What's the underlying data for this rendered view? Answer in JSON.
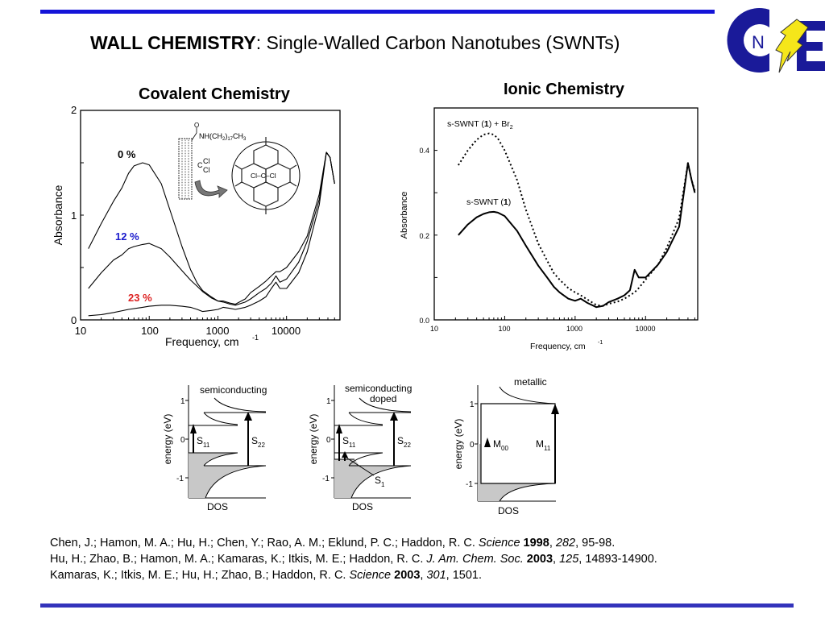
{
  "slide": {
    "title_bold": "WALL CHEMISTRY",
    "title_rest": ":  Single-Walled Carbon Nanotubes (SWNTs)",
    "logo": {
      "letters": [
        "C",
        "N",
        "E"
      ],
      "icon": "lightning-bolt-icon",
      "colors": {
        "blue": "#1a1a99",
        "yellow": "#f5e61a"
      }
    },
    "rule_color": "#1414d8"
  },
  "chart_data": [
    {
      "type": "line",
      "title": "Covalent Chemistry",
      "xlabel": "Frequency, cm",
      "xlabel_sup": "-1",
      "ylabel": "Absorbance",
      "xscale": "log",
      "xlim": [
        10,
        60000
      ],
      "ylim": [
        0,
        2
      ],
      "xticks": [
        "10",
        "100",
        "1000",
        "10000"
      ],
      "yticks": [
        "0",
        "1",
        "2"
      ],
      "series": [
        {
          "name": "0 %",
          "color_label": "#000000",
          "x": [
            13,
            20,
            30,
            40,
            50,
            60,
            80,
            100,
            150,
            200,
            300,
            400,
            500,
            600,
            800,
            1000,
            1200,
            1500,
            1800,
            2500,
            3000,
            4000,
            5000,
            6000,
            7000,
            8000,
            10000,
            15000,
            20000,
            30000,
            38000,
            43000,
            50000
          ],
          "y": [
            0.68,
            0.92,
            1.13,
            1.26,
            1.4,
            1.47,
            1.5,
            1.48,
            1.3,
            1.05,
            0.7,
            0.48,
            0.35,
            0.28,
            0.22,
            0.18,
            0.18,
            0.16,
            0.15,
            0.2,
            0.26,
            0.32,
            0.37,
            0.42,
            0.46,
            0.46,
            0.5,
            0.65,
            0.8,
            1.2,
            1.6,
            1.55,
            1.3
          ]
        },
        {
          "name": "12 %",
          "color_label": "#1a1acc",
          "x": [
            13,
            20,
            30,
            40,
            50,
            60,
            80,
            100,
            150,
            200,
            300,
            400,
            500,
            600,
            800,
            1000,
            1200,
            1500,
            1800,
            2500,
            3000,
            4000,
            5000,
            6000,
            7000,
            8000,
            10000,
            15000,
            20000,
            30000,
            38000,
            43000,
            50000
          ],
          "y": [
            0.3,
            0.45,
            0.57,
            0.62,
            0.68,
            0.7,
            0.72,
            0.73,
            0.68,
            0.6,
            0.47,
            0.38,
            0.32,
            0.27,
            0.21,
            0.18,
            0.17,
            0.15,
            0.14,
            0.17,
            0.2,
            0.26,
            0.3,
            0.35,
            0.42,
            0.36,
            0.39,
            0.55,
            0.75,
            1.15,
            1.6,
            1.55,
            1.3
          ]
        },
        {
          "name": "23 %",
          "color_label": "#dd2222",
          "x": [
            13,
            20,
            30,
            50,
            80,
            100,
            150,
            200,
            300,
            400,
            500,
            600,
            800,
            1000,
            1200,
            1500,
            1800,
            2500,
            3000,
            4000,
            5000,
            6000,
            7000,
            8000,
            10000,
            15000,
            20000,
            30000,
            38000,
            43000,
            50000
          ],
          "y": [
            0.04,
            0.05,
            0.07,
            0.1,
            0.12,
            0.13,
            0.14,
            0.14,
            0.13,
            0.12,
            0.1,
            0.08,
            0.09,
            0.1,
            0.12,
            0.11,
            0.1,
            0.12,
            0.14,
            0.18,
            0.22,
            0.3,
            0.36,
            0.3,
            0.3,
            0.45,
            0.65,
            1.1,
            1.6,
            1.55,
            1.3
          ]
        }
      ],
      "inset": {
        "substituent_top": "NH(CH",
        "sub_2": "2",
        "close": ")",
        "sub_17": "17",
        "ch3": "CH",
        "sub_3": "3",
        "carbonyl_o": "O",
        "cl_label": "Cl",
        "c_label": "C",
        "zoom_label": "Cl–C–Cl"
      }
    },
    {
      "type": "line",
      "title": "Ionic Chemistry",
      "xlabel": "Frequency, cm",
      "xlabel_sup": "-1",
      "ylabel": "Absorbance",
      "xscale": "log",
      "xlim": [
        10,
        55000
      ],
      "ylim": [
        0,
        0.5
      ],
      "xticks": [
        "10",
        "100",
        "1000",
        "10000"
      ],
      "yticks": [
        "0.0",
        "0.2",
        "0.4"
      ],
      "series": [
        {
          "name": "s-SWNT (1) + Br2",
          "label_main": "s-SWNT (",
          "label_bold": "1",
          "label_tail": ") + Br",
          "label_sub": "2",
          "style": "dotted",
          "x": [
            22,
            30,
            40,
            50,
            60,
            70,
            80,
            100,
            150,
            200,
            300,
            400,
            500,
            600,
            800,
            1000,
            1200,
            1500,
            2000,
            2500,
            3000,
            4000,
            5000,
            6000,
            7000,
            8000,
            10000,
            15000,
            20000,
            30000,
            40000,
            45000,
            50000
          ],
          "y": [
            0.365,
            0.4,
            0.425,
            0.437,
            0.44,
            0.437,
            0.428,
            0.4,
            0.33,
            0.26,
            0.18,
            0.14,
            0.11,
            0.095,
            0.075,
            0.065,
            0.058,
            0.048,
            0.035,
            0.033,
            0.038,
            0.043,
            0.05,
            0.058,
            0.065,
            0.075,
            0.095,
            0.13,
            0.17,
            0.24,
            0.37,
            0.33,
            0.305
          ]
        },
        {
          "name": "s-SWNT (1)",
          "label_main": "s-SWNT (",
          "label_bold": "1",
          "label_tail": ")",
          "style": "solid",
          "x": [
            22,
            30,
            40,
            50,
            60,
            70,
            80,
            100,
            150,
            200,
            300,
            400,
            500,
            600,
            800,
            1000,
            1200,
            1500,
            2000,
            2500,
            3000,
            4000,
            5000,
            6000,
            7000,
            8000,
            10000,
            15000,
            20000,
            30000,
            40000,
            45000,
            50000
          ],
          "y": [
            0.2,
            0.225,
            0.242,
            0.25,
            0.254,
            0.255,
            0.253,
            0.245,
            0.21,
            0.175,
            0.128,
            0.1,
            0.078,
            0.065,
            0.05,
            0.045,
            0.05,
            0.04,
            0.03,
            0.033,
            0.042,
            0.05,
            0.058,
            0.07,
            0.118,
            0.1,
            0.1,
            0.13,
            0.16,
            0.22,
            0.37,
            0.33,
            0.3
          ]
        }
      ]
    }
  ],
  "dos_diagrams": [
    {
      "title": "semiconducting",
      "title2": "",
      "ylabel": "energy (eV)",
      "xlabel": "DOS",
      "yticks": [
        "1",
        "0",
        "-1"
      ],
      "arrows": [
        {
          "label": "S",
          "sub": "11"
        },
        {
          "label": "S",
          "sub": "22"
        }
      ]
    },
    {
      "title": "semiconducting",
      "title2": "doped",
      "ylabel": "energy (eV)",
      "xlabel": "DOS",
      "yticks": [
        "1",
        "0",
        "-1"
      ],
      "arrows": [
        {
          "label": "S",
          "sub": "11"
        },
        {
          "label": "S",
          "sub": "22"
        },
        {
          "label": "S",
          "sub": "1"
        }
      ]
    },
    {
      "title": "metallic",
      "title2": "",
      "ylabel": "energy (eV)",
      "xlabel": "DOS",
      "yticks": [
        "1",
        "0",
        "-1"
      ],
      "arrows": [
        {
          "label": "M",
          "sub": "00"
        },
        {
          "label": "M",
          "sub": "11"
        }
      ]
    }
  ],
  "references": [
    {
      "authors": "Chen, J.; Hamon, M. A.; Hu, H.; Chen, Y.; Rao, A. M.; Eklund, P. C.; Haddon, R. C. ",
      "journal": "Science",
      "year": "1998",
      "volume": "282",
      "pages": ", 95-98."
    },
    {
      "authors": "Hu, H.; Zhao, B.; Hamon, M. A.; Kamaras, K.; Itkis, M. E.; Haddon, R. C. ",
      "journal": "J. Am. Chem. Soc.",
      "year": "2003",
      "volume": "125",
      "pages": ", 14893-14900."
    },
    {
      "authors": "Kamaras, K.; Itkis, M. E.; Hu, H.; Zhao, B.; Haddon, R. C. ",
      "journal": "Science",
      "year": "2003",
      "volume": "301",
      "pages": ", 1501."
    }
  ]
}
